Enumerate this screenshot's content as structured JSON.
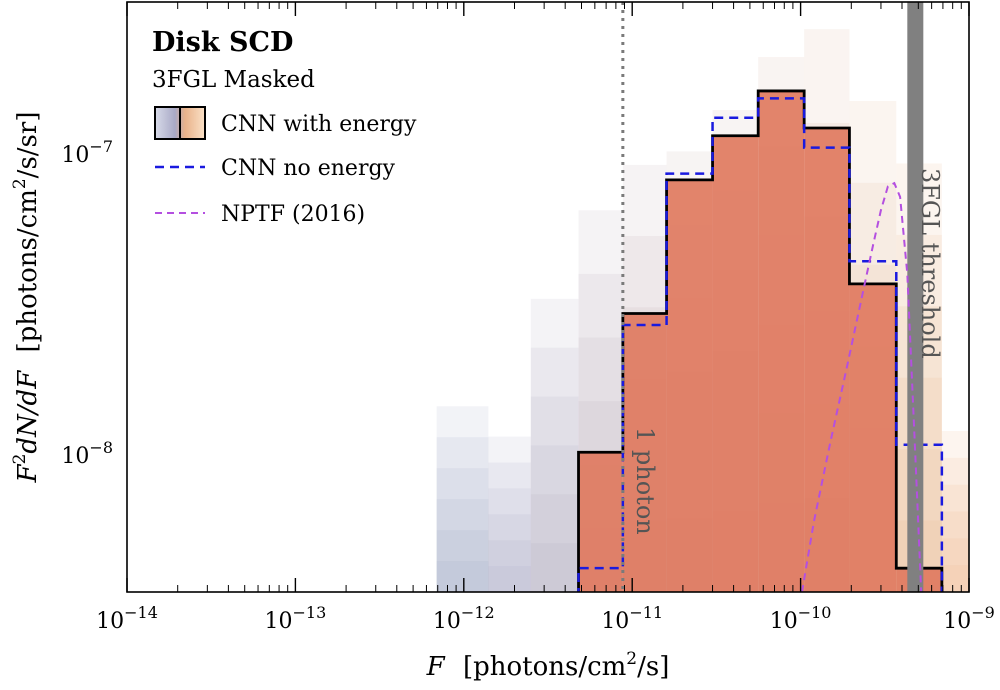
{
  "chart_data": {
    "type": "bar",
    "xscale": "log",
    "yscale": "log",
    "xlim": [
      1e-14,
      1e-09
    ],
    "ylim": [
      3.5e-09,
      3.2e-07
    ],
    "xlabel": "F  [photons/cm²/s]",
    "ylabel": "F²dN/dF  [photons/cm²/s/sr]",
    "x_ticks": [
      {
        "label": "10",
        "exp": "−14"
      },
      {
        "label": "10",
        "exp": "−13"
      },
      {
        "label": "10",
        "exp": "−12"
      },
      {
        "label": "10",
        "exp": "−11"
      },
      {
        "label": "10",
        "exp": "−10"
      },
      {
        "label": "10",
        "exp": "−9"
      }
    ],
    "y_ticks": [
      {
        "label": "10",
        "exp": "−8"
      },
      {
        "label": "10",
        "exp": "−7"
      }
    ],
    "legend": {
      "title": "Disk SCD",
      "subtitle": "3FGL Masked",
      "placement": "top-left",
      "entries": [
        "CNN with energy",
        "CNN no energy",
        "NPTF (2016)"
      ]
    },
    "bin_edges": [
      6.9e-13,
      1.4e-12,
      2.5e-12,
      4.8e-12,
      8.8e-12,
      1.6e-11,
      3e-11,
      5.6e-11,
      1.05e-10,
      1.95e-10,
      3.7e-10,
      6.9e-10
    ],
    "series": [
      {
        "name": "CNN with energy",
        "style": "black-step-orange-fill",
        "values": [
          null,
          null,
          null,
          1.02e-08,
          2.95e-08,
          8.2e-08,
          1.15e-07,
          1.62e-07,
          1.22e-07,
          3.7e-08,
          4.2e-09
        ]
      },
      {
        "name": "CNN no energy",
        "style": "blue-dashed-step",
        "values": [
          null,
          null,
          null,
          4.2e-09,
          2.7e-08,
          8.6e-08,
          1.32e-07,
          1.53e-07,
          1.05e-07,
          4.4e-08,
          1.08e-08
        ]
      },
      {
        "name": "NPTF (2016)",
        "style": "purple-dashed-curve",
        "x": [
          1.02e-10,
          1.2e-10,
          1.5e-10,
          1.9e-10,
          2.3e-10,
          2.7e-10,
          3e-10,
          3.3e-10,
          3.6e-10,
          3.9e-10,
          4.3e-10,
          4.8e-10,
          5.2e-10
        ],
        "values": [
          3.5e-09,
          6e-09,
          1.1e-08,
          2e-08,
          3.3e-08,
          5e-08,
          6.5e-08,
          7.8e-08,
          8e-08,
          7.2e-08,
          4e-08,
          1e-08,
          3.5e-09
        ]
      }
    ],
    "uncertainty_bands": {
      "bin_edges": [
        6.9e-13,
        1.4e-12,
        2.5e-12,
        4.8e-12,
        8.8e-12,
        1.6e-11,
        3e-11,
        5.6e-11,
        1.05e-10,
        1.95e-10,
        3.7e-10,
        6.9e-10,
        1e-09
      ],
      "upper": [
        1.45e-08,
        1.15e-08,
        3.3e-08,
        6.5e-08,
        9.2e-08,
        1.02e-07,
        1.4e-07,
        2.1e-07,
        2.6e-07,
        1.5e-07,
        9.3e-08,
        1.2e-08,
        6.2e-09
      ]
    },
    "vertical_lines": [
      {
        "x": 8.8e-12,
        "label": "1 photon",
        "style": "dotted-gray"
      },
      {
        "x": 4.8e-10,
        "label": "3FGL threshold",
        "style": "thick-gray"
      }
    ],
    "grid": false,
    "colors": {
      "cnn_energy_fill": "#e07a5f",
      "cnn_energy_edge": "#000000",
      "band_low": "#9aa0c4",
      "band_high": "#f4b27a",
      "cnn_no_energy": "#1a1adf",
      "nptf": "#b44fe0",
      "threshold": "#808080"
    }
  }
}
